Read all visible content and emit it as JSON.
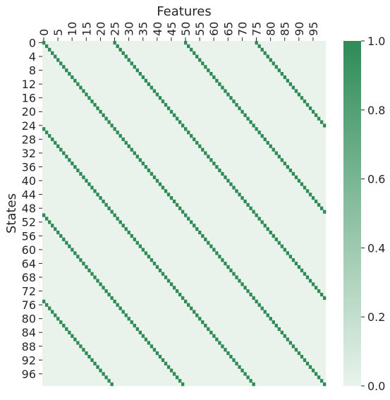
{
  "chart_data": {
    "type": "heatmap",
    "title": "",
    "xlabel": "Features",
    "ylabel": "States",
    "x_tick_labels": [
      "0",
      "5",
      "10",
      "15",
      "20",
      "25",
      "30",
      "35",
      "40",
      "45",
      "50",
      "55",
      "60",
      "65",
      "70",
      "75",
      "80",
      "85",
      "90",
      "95"
    ],
    "y_tick_labels": [
      "0",
      "4",
      "8",
      "12",
      "16",
      "20",
      "24",
      "28",
      "32",
      "36",
      "40",
      "44",
      "48",
      "52",
      "56",
      "60",
      "64",
      "68",
      "72",
      "76",
      "80",
      "84",
      "88",
      "92",
      "96"
    ],
    "x_tick_step": 5,
    "y_tick_step": 4,
    "n_rows": 100,
    "n_cols": 100,
    "pattern": "cell(state, feature) = 1.0 when feature = (state mod 25) + 25*k for k in {0,1,2,3}; otherwise 0.0",
    "block_size": 25,
    "value_range": [
      0.0,
      1.0
    ],
    "colorbar": {
      "ticks": [
        0.0,
        0.2,
        0.4,
        0.6,
        0.8,
        1.0
      ],
      "tick_labels": [
        "0.0",
        "0.2",
        "0.4",
        "0.6",
        "0.8",
        "1.0"
      ]
    },
    "colors": {
      "low": "#e9f3ec",
      "high": "#2e8b57",
      "text": "#262626"
    },
    "x_axis_position": "top",
    "colorbar_position": "right"
  }
}
